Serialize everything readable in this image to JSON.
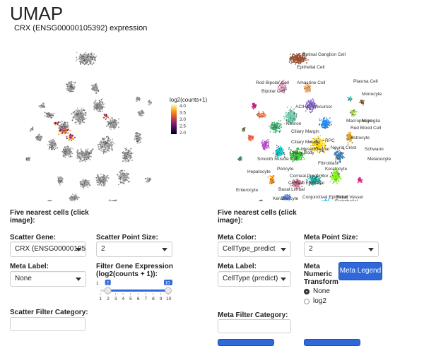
{
  "page": {
    "title": "UMAP"
  },
  "expression_plot": {
    "title": "CRX (ENSG00000105392) expression",
    "legend_title": "log2(counts+1)",
    "legend_ticks": [
      "4.0",
      "3.5",
      "3.0",
      "2.5",
      "2.0"
    ]
  },
  "meta_plot": {
    "cluster_labels": [
      "Rod Bipolar Cell",
      "Bipolar Cell",
      "Amacrine Cell",
      "AC/HC_Precursor",
      "Neuron",
      "Ciliary Margin",
      "Retinal Ganglion Cell",
      "Plasma Cell",
      "Monocyte",
      "Macrophage",
      "Microglia",
      "Red Blood Cell",
      "Astrocyte",
      "Schwann",
      "Melanocyte",
      "RPC",
      "Ciliary Muscle",
      "Mesenchymal",
      "Neural Crest",
      "Ciliary Body",
      "Smooth Muscle Cell",
      "Hepatocyte",
      "Fibroblast",
      "Pericyte",
      "Keratocyte",
      "Corneal Progenitor",
      "Corneal Epithelial",
      "Basal Limbal",
      "Enterocyte",
      "Conjunctival Epithelial",
      "Keratinocyte",
      "Blood Vessel",
      "Endothelial",
      "Epithelial Cell"
    ]
  },
  "left_controls": {
    "nearest_label": "Five nearest cells (click image):",
    "scatter_gene_label": "Scatter Gene:",
    "scatter_gene_value": "CRX (ENSG00000105392)",
    "scatter_point_size_label": "Scatter Point Size:",
    "scatter_point_size_value": "2",
    "meta_label_label": "Meta Label:",
    "meta_label_value": "None",
    "filter_gene_label": "Filter Gene Expression (log2(counts + 1)):",
    "slider": {
      "min": 1,
      "max": 10,
      "low": 2,
      "high": 10,
      "ticks": [
        "1",
        "2",
        "3",
        "4",
        "5",
        "6",
        "7",
        "8",
        "9",
        "10"
      ]
    },
    "scatter_filter_label": "Scatter Filter Category:"
  },
  "right_controls": {
    "nearest_label": "Five nearest cells (click image):",
    "meta_color_label": "Meta Color:",
    "meta_color_value": "CellType_predict",
    "meta_point_size_label": "Meta Point Size:",
    "meta_point_size_value": "2",
    "meta_label_label": "Meta Label:",
    "meta_label_value": "CellType (predict)",
    "numeric_transform_label": "Meta Numeric Transform",
    "transform_options": [
      "None",
      "log2"
    ],
    "transform_selected": "None",
    "meta_legend_button": "Meta Legend",
    "meta_filter_label": "Meta Filter Category:"
  },
  "colors": {
    "accent": "#2f68d8",
    "slider": "#2f68d8"
  }
}
